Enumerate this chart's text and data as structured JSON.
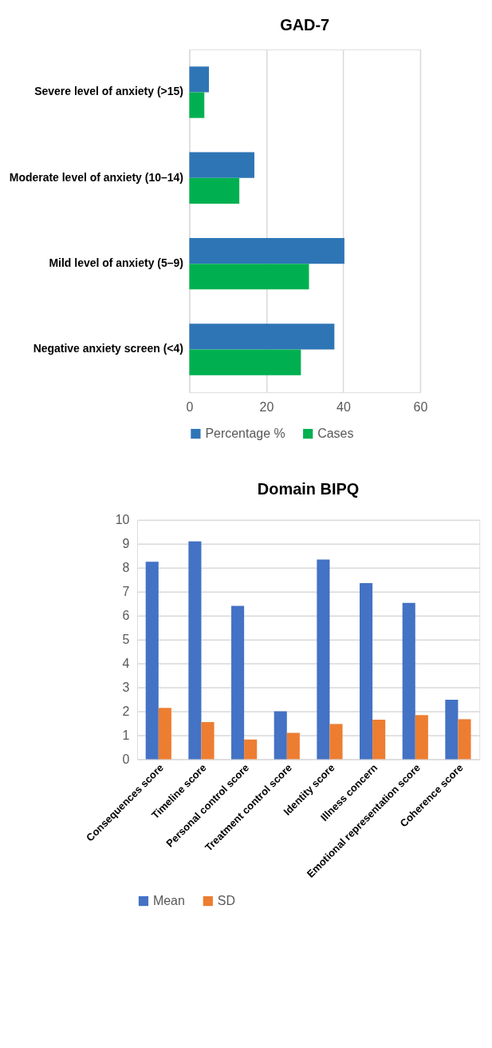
{
  "chart_data": [
    {
      "type": "bar",
      "title": "GAD-7",
      "orientation": "horizontal",
      "categories": [
        "Severe level of anxiety (>15)",
        "Moderate level of anxiety (10–14)",
        "Mild level of anxiety (5–9)",
        "Negative anxiety screen (<4)"
      ],
      "series": [
        {
          "name": "Percentage %",
          "color": "#2e75b6",
          "values": [
            5.1,
            16.9,
            40.3,
            37.7
          ]
        },
        {
          "name": "Cases",
          "color": "#00b050",
          "values": [
            3.9,
            13.0,
            31.1,
            29.0
          ]
        }
      ],
      "xlim": [
        0,
        60
      ],
      "xticks": [
        0,
        20,
        40,
        60
      ],
      "grid": "x",
      "legend": "bottom"
    },
    {
      "type": "bar",
      "title": "Domain BIPQ",
      "categories": [
        "Consequences score",
        "Timeline score",
        "Personal control score",
        "Treatment control score",
        "Identity score",
        "Illness concern",
        "Emotional representation score",
        "Coherence score"
      ],
      "series": [
        {
          "name": "Mean",
          "color": "#4472c4",
          "values": [
            8.25,
            9.1,
            6.41,
            2.0,
            8.34,
            7.36,
            6.53,
            2.48
          ]
        },
        {
          "name": "SD",
          "color": "#ed7d31",
          "values": [
            2.14,
            1.55,
            0.82,
            1.1,
            1.47,
            1.65,
            1.84,
            1.67
          ]
        }
      ],
      "ylim": [
        0,
        10
      ],
      "yticks": [
        0,
        1,
        2,
        3,
        4,
        5,
        6,
        7,
        8,
        9,
        10
      ],
      "grid": "y",
      "legend": "bottom"
    }
  ]
}
